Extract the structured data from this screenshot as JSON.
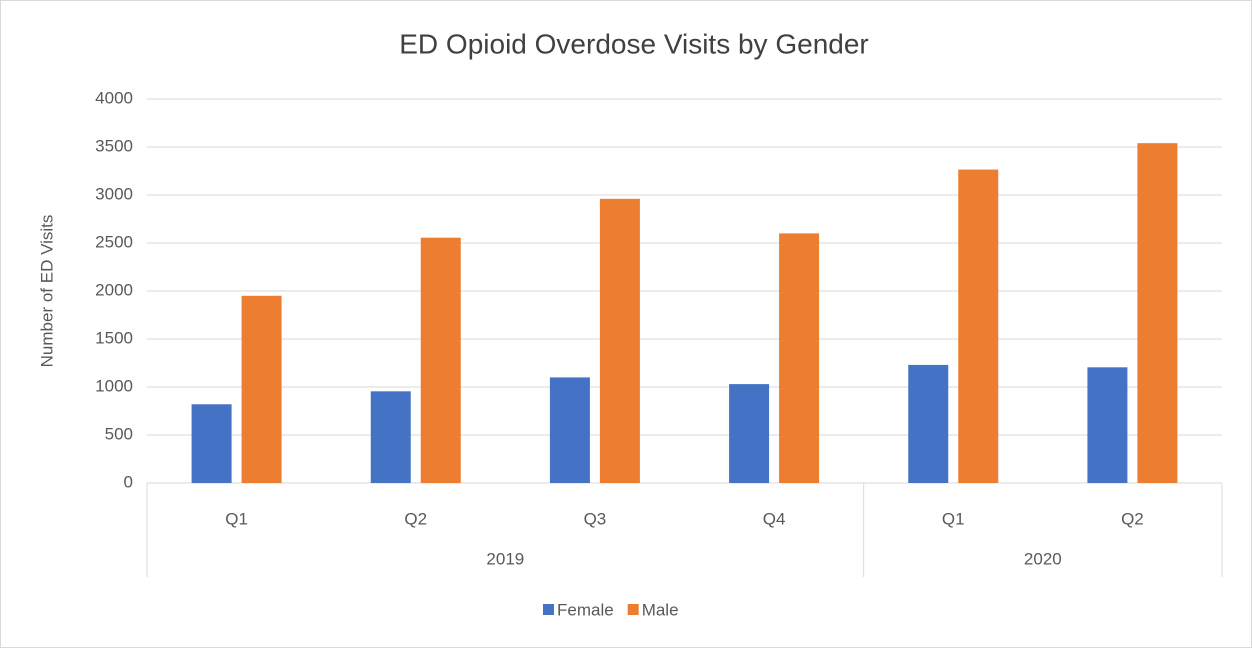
{
  "chart_data": {
    "type": "bar",
    "title": "ED Opioid Overdose Visits by Gender",
    "y_label": "Number of ED Visits",
    "categories": [
      "Q1",
      "Q2",
      "Q3",
      "Q4",
      "Q1",
      "Q2"
    ],
    "category_groups": [
      "2019",
      "2019",
      "2019",
      "2019",
      "2020",
      "2020"
    ],
    "series": [
      {
        "name": "Female",
        "color": "#4472c4",
        "values": [
          820,
          955,
          1100,
          1030,
          1230,
          1205
        ]
      },
      {
        "name": "Male",
        "color": "#ed7d31",
        "values": [
          1950,
          2555,
          2960,
          2600,
          3265,
          3540
        ]
      }
    ],
    "ylim": [
      0,
      4000
    ],
    "yticks": [
      0,
      500,
      1000,
      1500,
      2000,
      2500,
      3000,
      3500,
      4000
    ],
    "grid": true,
    "legend": "bottom"
  }
}
